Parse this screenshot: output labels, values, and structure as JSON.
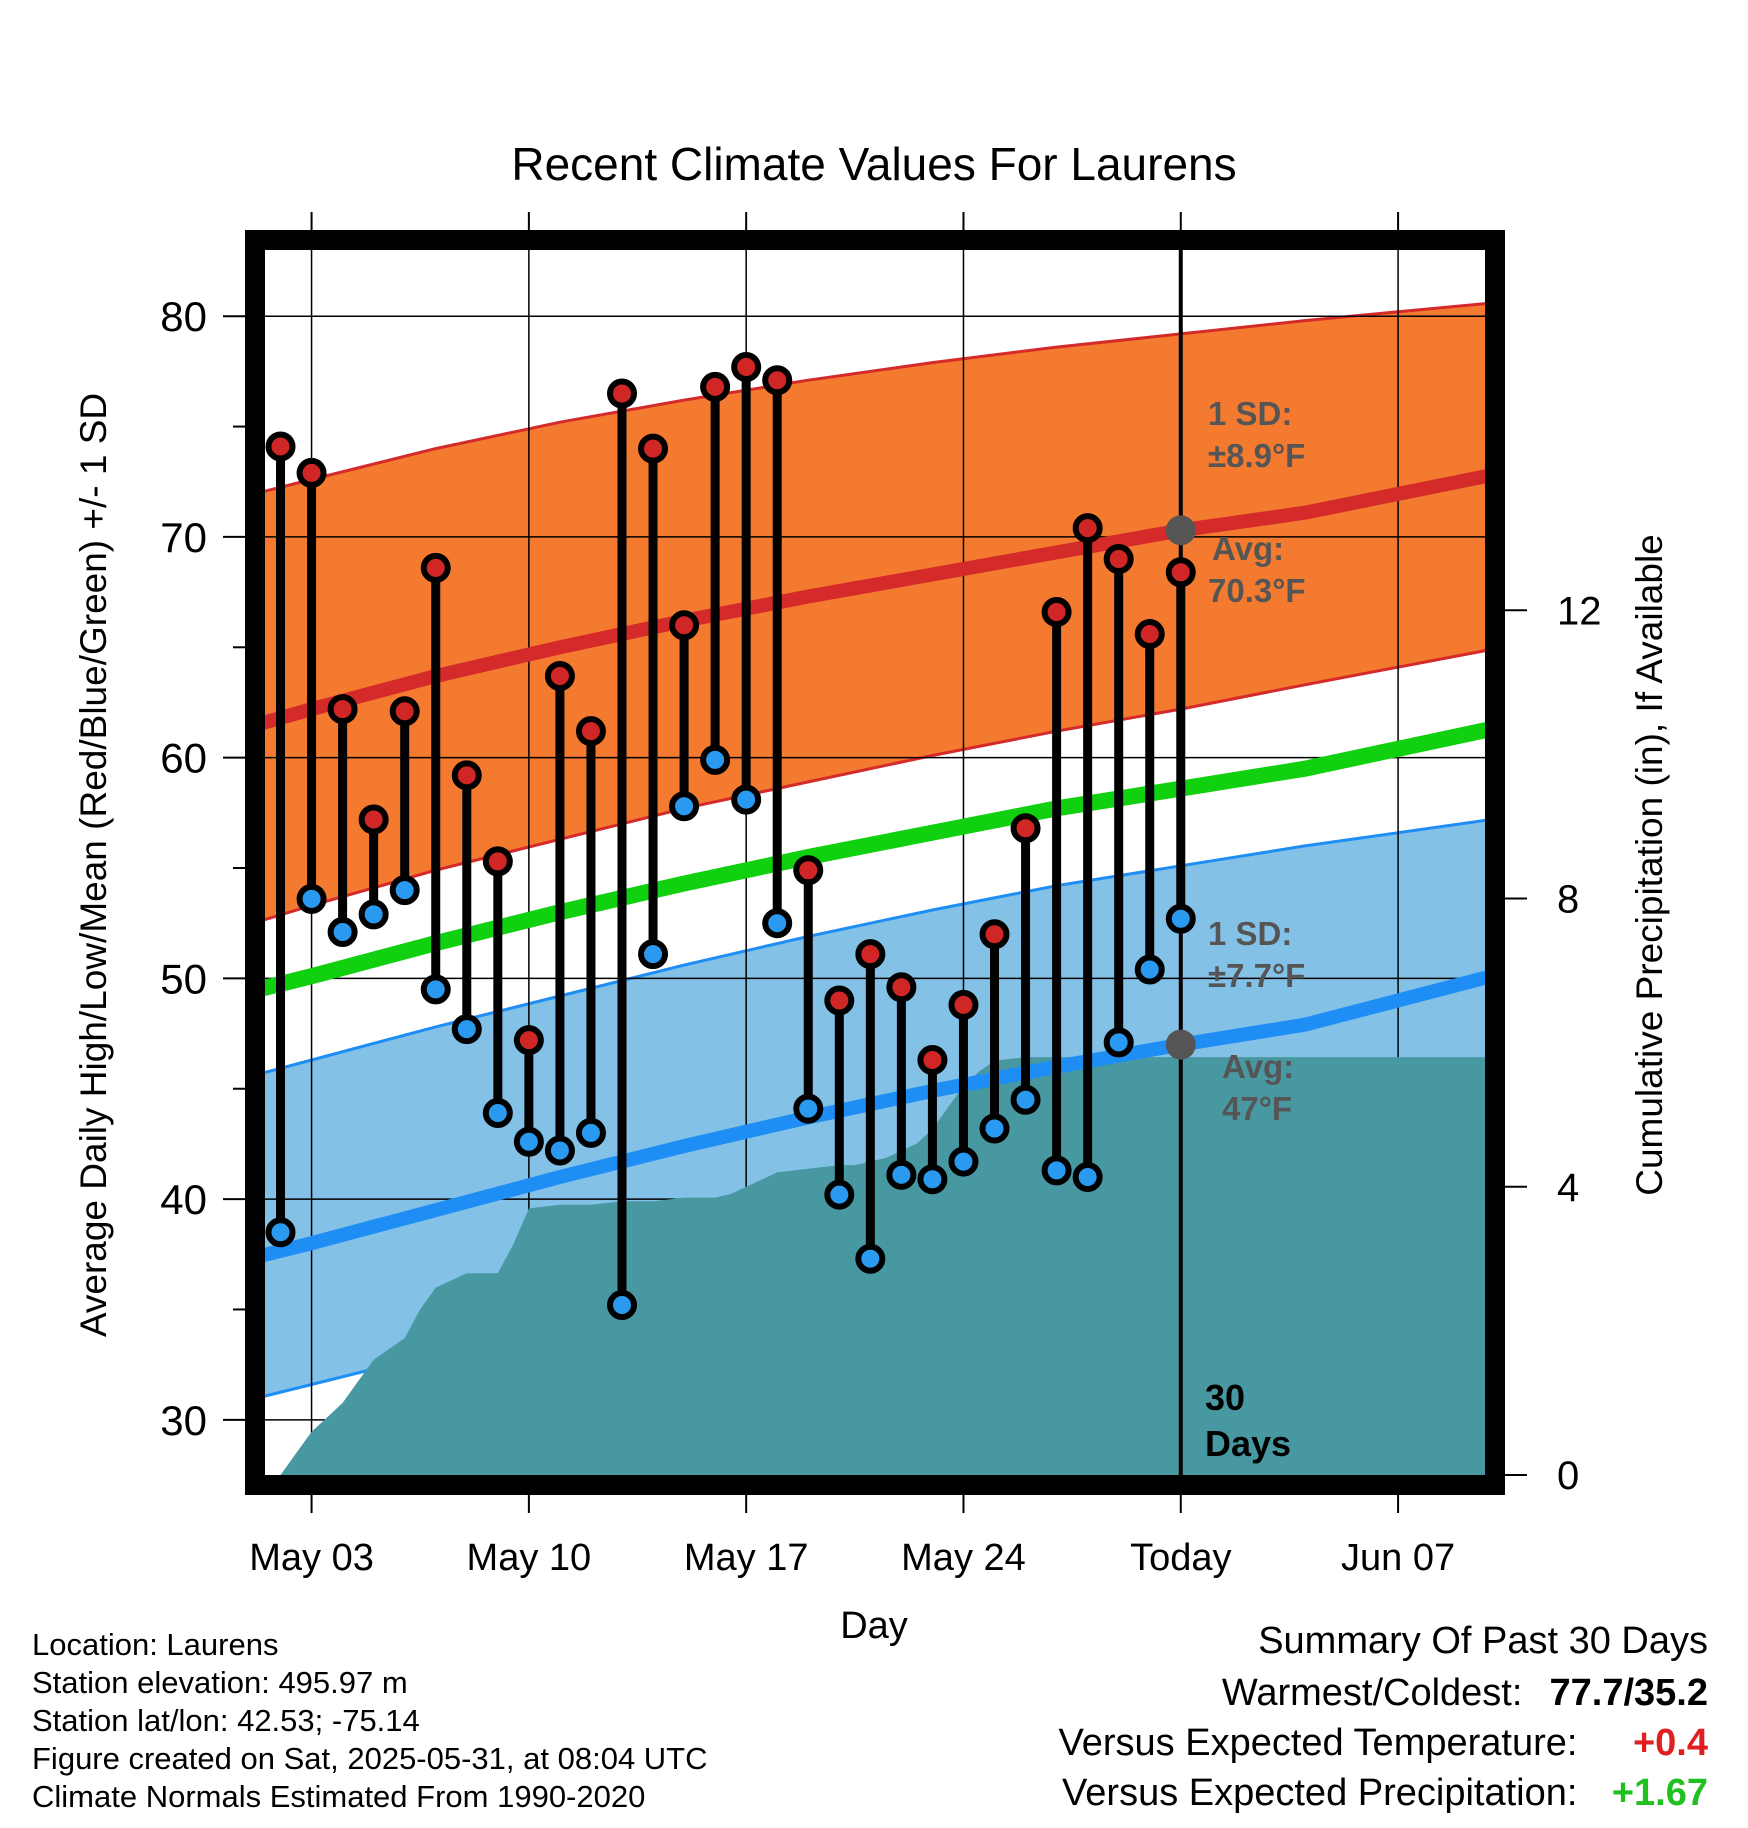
{
  "chart_data": {
    "type": "line",
    "title": "Recent Climate Values For Laurens",
    "xlabel": "Day",
    "ylabel": "Average Daily High/Low/Mean (Red/Blue/Green) +/- 1 SD",
    "y2label": "Cumulative Precipitation (in), If Available",
    "x_tick_labels": [
      "May 03",
      "May 10",
      "May 17",
      "May 24",
      "Today",
      "Jun 07"
    ],
    "y_ticks": [
      30,
      40,
      50,
      60,
      70,
      80
    ],
    "y2_ticks": [
      0,
      4,
      8,
      12
    ],
    "ylim": [
      27.5,
      83
    ],
    "y2lim": [
      0,
      17
    ],
    "xlim": [
      -29.5,
      9.8
    ],
    "grid": true,
    "today_marker": "30 Days",
    "days": [
      -29,
      -28,
      -27,
      -26,
      -25,
      -24,
      -23,
      -22,
      -21,
      -20,
      -19,
      -18,
      -17,
      -16,
      -15,
      -14,
      -13,
      -12,
      -11,
      -10,
      -9,
      -8,
      -7,
      -6,
      -5,
      -4,
      -3,
      -2,
      -1,
      0,
      10
    ],
    "daily_high": [
      74.1,
      72.9,
      62.2,
      57.2,
      62.1,
      68.6,
      59.2,
      55.3,
      47.2,
      63.7,
      61.2,
      76.5,
      74.0,
      66.0,
      76.8,
      77.7,
      77.1,
      54.9,
      49.0,
      51.1,
      49.6,
      46.3,
      48.8,
      52.0,
      56.8,
      66.6,
      70.4,
      69.0,
      65.6,
      68.4
    ],
    "daily_low": [
      38.5,
      53.6,
      52.1,
      52.9,
      54.0,
      49.5,
      47.7,
      43.9,
      42.6,
      42.2,
      43.0,
      35.2,
      51.1,
      57.8,
      59.9,
      58.1,
      52.5,
      44.1,
      40.2,
      37.3,
      41.1,
      40.9,
      41.7,
      43.2,
      44.5,
      41.3,
      41.0,
      47.1,
      50.4,
      52.7
    ],
    "normal_high": {
      "days": [
        -32,
        -28,
        -24,
        -20,
        -16,
        -12,
        -8,
        -4,
        0,
        4,
        10
      ],
      "avg": [
        60.6,
        62.2,
        63.7,
        65.0,
        66.2,
        67.3,
        68.3,
        69.3,
        70.3,
        71.1,
        72.8
      ],
      "upper": [
        71.2,
        72.6,
        74.0,
        75.2,
        76.2,
        77.1,
        77.9,
        78.6,
        79.2,
        79.8,
        80.6
      ],
      "lower": [
        51.6,
        53.3,
        54.9,
        56.3,
        57.7,
        58.9,
        60.1,
        61.2,
        62.2,
        63.3,
        64.9
      ]
    },
    "normal_low": {
      "days": [
        -32,
        -28,
        -24,
        -20,
        -16,
        -12,
        -8,
        -4,
        0,
        4,
        10
      ],
      "avg": [
        36.6,
        38.0,
        39.5,
        41.0,
        42.4,
        43.7,
        44.9,
        46.0,
        47.0,
        47.9,
        50.1
      ],
      "upper": [
        44.8,
        46.3,
        47.8,
        49.2,
        50.6,
        51.9,
        53.1,
        54.2,
        55.1,
        56.0,
        57.2
      ],
      "lower": [
        30.2,
        31.6,
        33.0,
        34.4,
        35.7,
        37.0,
        38.1,
        39.2,
        40.2,
        41.2,
        43.6
      ]
    },
    "normal_mean": {
      "days": [
        -32,
        -28,
        -24,
        -20,
        -16,
        -12,
        -8,
        -4,
        0,
        4,
        10
      ],
      "values": [
        48.7,
        50.1,
        51.6,
        53.0,
        54.3,
        55.5,
        56.6,
        57.7,
        58.6,
        59.5,
        61.3
      ]
    },
    "cumulative_precip": {
      "days": [
        -29,
        -28.5,
        -28,
        -27.5,
        -27,
        -26.5,
        -26,
        -25.5,
        -25,
        -24.5,
        -24,
        -23.5,
        -23,
        -22.5,
        -22,
        -21.5,
        -21,
        -20,
        -19,
        -18,
        -17,
        -16,
        -15,
        -14.5,
        -14,
        -13.5,
        -13,
        -12,
        -11,
        -10.5,
        -10,
        -9.5,
        -9,
        -8.5,
        -8,
        -7.5,
        -7,
        -6.5,
        -6,
        -5,
        10
      ],
      "values": [
        0.0,
        0.3,
        0.6,
        0.8,
        1.0,
        1.3,
        1.6,
        1.75,
        1.9,
        2.3,
        2.6,
        2.7,
        2.8,
        2.8,
        2.8,
        3.2,
        3.7,
        3.75,
        3.75,
        3.8,
        3.8,
        3.85,
        3.85,
        3.9,
        4.0,
        4.1,
        4.2,
        4.25,
        4.3,
        4.3,
        4.35,
        4.4,
        4.5,
        4.6,
        4.8,
        5.1,
        5.4,
        5.6,
        5.75,
        5.8,
        5.8
      ]
    },
    "annotations": {
      "high_sd": "1 SD:",
      "high_sd_value": "±8.9°F",
      "high_avg": "Avg:",
      "high_avg_value": "70.3°F",
      "low_sd": "1 SD:",
      "low_sd_value": "±7.7°F",
      "low_avg": "Avg:",
      "low_avg_value": "47°F"
    },
    "colors": {
      "high_band": "#f47a30",
      "high_line": "#d42a2a",
      "low_band": "#84c1e7",
      "low_line": "#1e8ef5",
      "mean_line": "#10d010",
      "precip": "#4898a2",
      "high_dot": "#d02626",
      "low_dot": "#2a9af0",
      "annotation": "#555555"
    }
  },
  "footer": {
    "location": "Location: Laurens",
    "elevation": "Station elevation: 495.97 m",
    "latlon": "Station lat/lon: 42.53; -75.14",
    "created": "Figure created on Sat, 2025-05-31, at 08:04 UTC",
    "normals": "Climate Normals Estimated From 1990-2020"
  },
  "summary": {
    "title": "Summary Of Past 30 Days",
    "warm_cold_label": "Warmest/Coldest:",
    "warm_cold_value": "77.7/35.2",
    "temp_label": "Versus Expected Temperature:",
    "temp_value": "+0.4",
    "temp_color": "#e02020",
    "precip_label": "Versus Expected Precipitation:",
    "precip_value": "+1.67",
    "precip_color": "#20c020"
  }
}
